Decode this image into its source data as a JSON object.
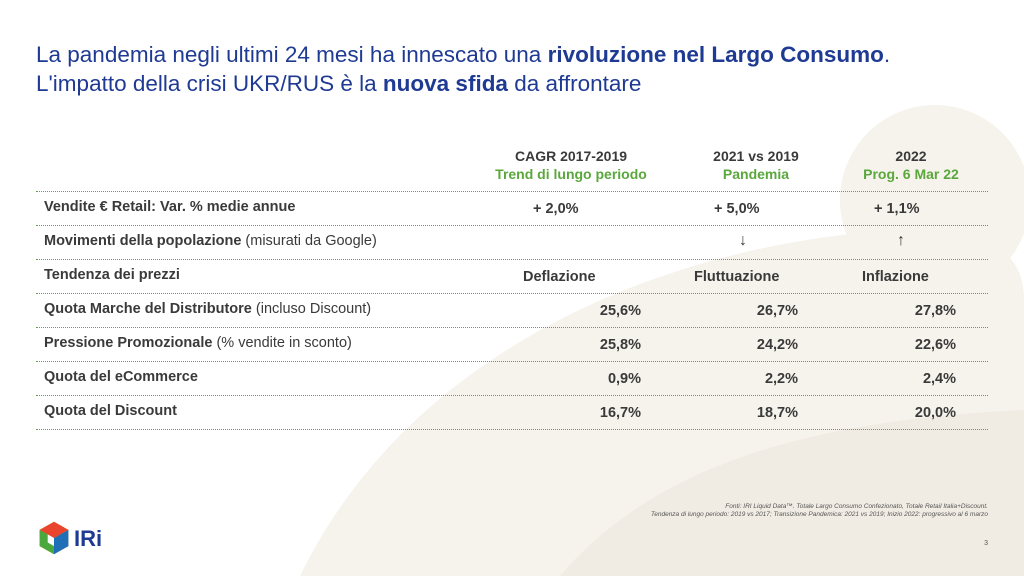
{
  "title": {
    "line1_pre": "La pandemia negli ultimi 24 mesi ha innescato una ",
    "line1_bold": "rivoluzione nel Largo Consumo",
    "line1_post": ".",
    "line2_pre": "L'impatto della crisi UKR/RUS è la ",
    "line2_bold": "nuova sfida",
    "line2_post": " da affrontare"
  },
  "columns": [
    {
      "line1": "CAGR 2017-2019",
      "line2": "Trend di lungo periodo"
    },
    {
      "line1": "2021 vs 2019",
      "line2": "Pandemia"
    },
    {
      "line1": "2022",
      "line2": "Prog. 6 Mar 22"
    }
  ],
  "rows": [
    {
      "label_bold": "Vendite € Retail: Var. % medie annue",
      "label_rest": "",
      "values": [
        "+ 2,0%",
        "+ 5,0%",
        "+ 1,1%"
      ]
    },
    {
      "label_bold": "Movimenti della popolazione",
      "label_rest": "  (misurati da Google)",
      "values": [
        "",
        "↓",
        "↑"
      ]
    },
    {
      "label_bold": "Tendenza dei prezzi",
      "label_rest": "",
      "values": [
        "Deflazione",
        "Fluttuazione",
        "Inflazione"
      ]
    },
    {
      "label_bold": "Quota Marche del Distributore",
      "label_rest": " (incluso Discount)",
      "values": [
        "25,6%",
        "26,7%",
        "27,8%"
      ]
    },
    {
      "label_bold": "Pressione Promozionale",
      "label_rest": " (% vendite in sconto)",
      "values": [
        "25,8%",
        "24,2%",
        "22,6%"
      ]
    },
    {
      "label_bold": "Quota del eCommerce",
      "label_rest": "",
      "values": [
        "0,9%",
        "2,2%",
        "2,4%"
      ]
    },
    {
      "label_bold": "Quota del Discount",
      "label_rest": "",
      "values": [
        "16,7%",
        "18,7%",
        "20,0%"
      ]
    }
  ],
  "footnote": {
    "line1": "Fonti: IRI Liquid Data™. Totale Largo Consumo Confezionato, Totale Retail Italia+Discount.",
    "line2": "Tendenza di lungo periodo: 2019 vs 2017; Transizione Pandemica: 2021 vs 2019; Inizio 2022: progressivo al 6 marzo"
  },
  "page_number": "3",
  "logo_text": "IRi",
  "colors": {
    "title_blue": "#1f3a93",
    "accent_green": "#5aa83c",
    "shape_beige": "#f5f1ea"
  }
}
